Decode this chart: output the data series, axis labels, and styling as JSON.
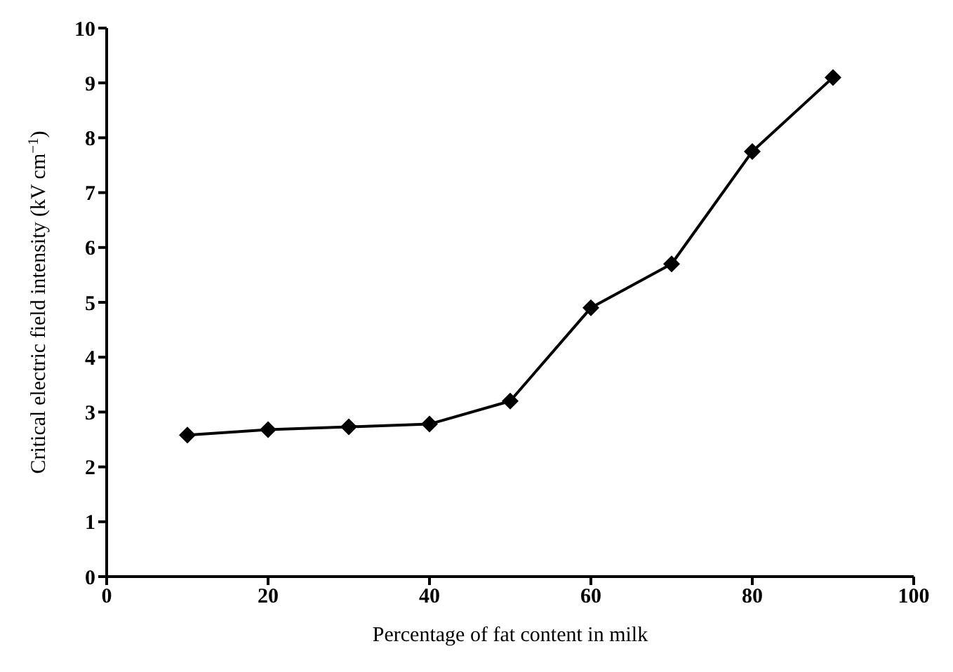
{
  "chart_data": {
    "type": "line",
    "xlabel": "Percentage of fat content in milk",
    "ylabel": "Critical electric field intensity (kV cm$^{−1}$)",
    "x": [
      10,
      20,
      30,
      40,
      50,
      60,
      70,
      80,
      90
    ],
    "series": [
      {
        "color": "#000000",
        "values": [
          2.58,
          2.68,
          2.73,
          2.78,
          3.2,
          4.9,
          5.7,
          7.75,
          9.1
        ]
      }
    ],
    "xlim": [
      0,
      100
    ],
    "xticks": [
      0,
      20,
      40,
      60,
      80,
      100
    ],
    "ylim": [
      0,
      10
    ],
    "yticks": [
      0,
      1,
      2,
      3,
      4,
      5,
      6,
      7,
      8,
      9,
      10
    ],
    "grid": false,
    "legend": false,
    "marker": "diamond",
    "line_style": "solid"
  }
}
